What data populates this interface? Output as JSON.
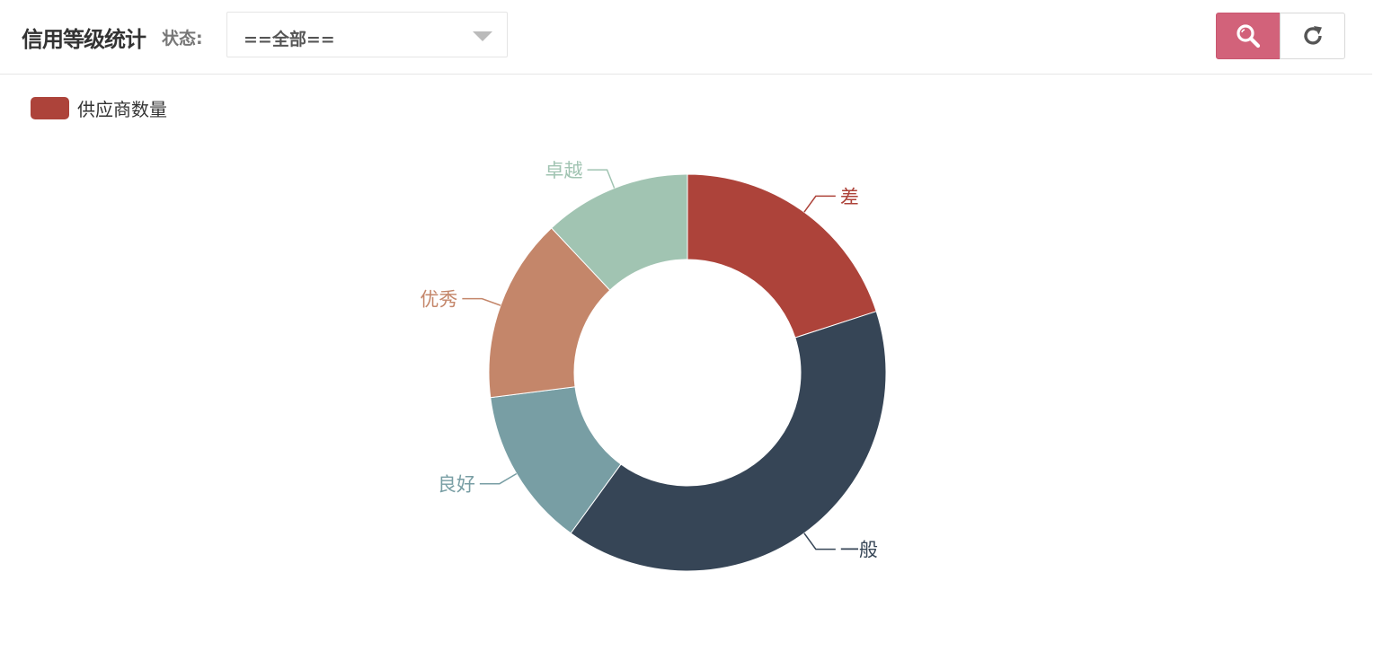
{
  "toolbar": {
    "title": "信用等级统计",
    "status_label": "状态:",
    "status_select": {
      "selected": "==全部=="
    },
    "search_icon": "search-icon",
    "refresh_icon": "refresh-icon",
    "search_color": "#d2627a"
  },
  "chart_data": {
    "type": "pie",
    "variant": "donut",
    "legend": {
      "placement": "top-left",
      "entries": [
        "供应商数量"
      ]
    },
    "series": [
      {
        "name": "供应商数量",
        "slices": [
          {
            "label": "差",
            "value": 20,
            "color": "#ad433a"
          },
          {
            "label": "一般",
            "value": 40,
            "color": "#364556"
          },
          {
            "label": "良好",
            "value": 13,
            "color": "#789ea4"
          },
          {
            "label": "优秀",
            "value": 15,
            "color": "#c4866a"
          },
          {
            "label": "卓越",
            "value": 12,
            "color": "#a1c4b2"
          }
        ]
      }
    ]
  }
}
